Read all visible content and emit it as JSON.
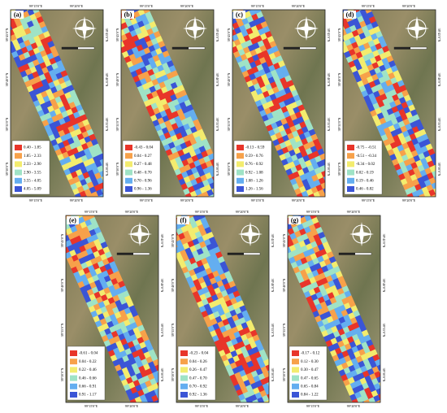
{
  "axes": {
    "lon": [
      "99°15'0\"E",
      "99°20'0\"E",
      "99°25'0\"E"
    ],
    "lat": [
      "38°45'0\"N",
      "38°40'0\"N",
      "38°35'0\"N",
      "38°30'0\"N"
    ]
  },
  "legend_colors": [
    "#e8352a",
    "#f7a14a",
    "#f3ec6e",
    "#9fe3c6",
    "#64aef0",
    "#3b55d6"
  ],
  "panels": [
    {
      "label": "(a)",
      "legend": [
        "0.40 - 1.85",
        "1.85 - 2.33",
        "2.33 - 2.90",
        "2.90 - 3.55",
        "3.55 - 4.05",
        "4.05 - 5.09"
      ]
    },
    {
      "label": "(b)",
      "legend": [
        "-0.43 - 0.04",
        "0.04 - 0.27",
        "0.27 - 0.48",
        "0.48 - 0.70",
        "0.70 - 0.96",
        "0.96 - 1.36"
      ]
    },
    {
      "label": "(c)",
      "legend": [
        "-0.13 - 0.59",
        "0.59 - 0.76",
        "0.76 - 0.92",
        "0.92 - 1.08",
        "1.08 - 1.26",
        "1.26 - 1.56"
      ]
    },
    {
      "label": "(d)",
      "legend": [
        "-0.75 - -0.51",
        "-0.51 - -0.34",
        "-0.34 - 0.02",
        "0.02 - 0.19",
        "0.19 - 0.46",
        "0.46 - 0.82"
      ]
    },
    {
      "label": "(e)",
      "legend": [
        "-0.61 - 0.04",
        "0.04 - 0.22",
        "0.22 - 0.46",
        "0.46 - 0.66",
        "0.66 - 0.91",
        "0.91 - 1.17"
      ]
    },
    {
      "label": "(f)",
      "legend": [
        "-0.23 - 0.04",
        "0.04 - 0.26",
        "0.26 - 0.47",
        "0.47 - 0.70",
        "0.70 - 0.92",
        "0.92 - 1.36"
      ]
    },
    {
      "label": "(g)",
      "legend": [
        "-0.17 - 0.12",
        "0.12 - 0.30",
        "0.30 - 0.47",
        "0.47 - 0.65",
        "0.65 - 0.84",
        "0.84 - 1.22"
      ]
    }
  ]
}
